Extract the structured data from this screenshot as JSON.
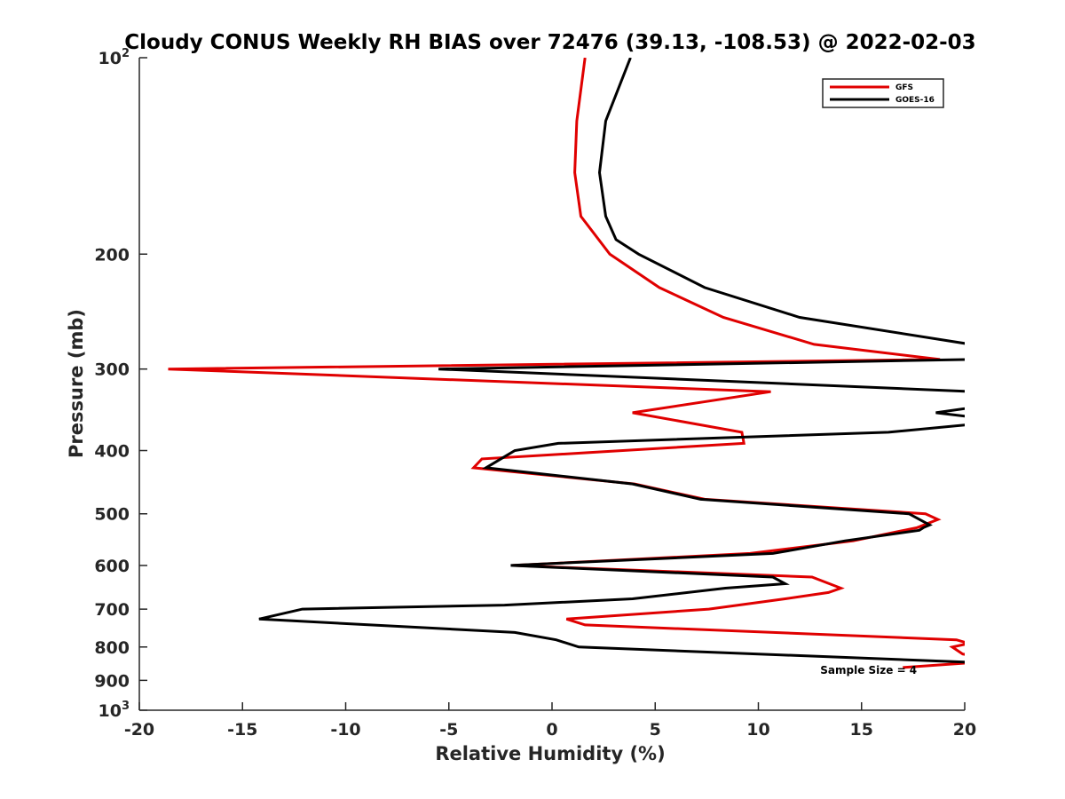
{
  "chart_data": {
    "type": "line",
    "title": "Cloudy CONUS Weekly RH BIAS over 72476 (39.13, -108.53) @ 2022-02-03",
    "xlabel": "Relative Humidity (%)",
    "ylabel": "Pressure (mb)",
    "xlim": [
      -20,
      20
    ],
    "ylim": [
      100,
      1000
    ],
    "y_scale": "log",
    "y_reversed": true,
    "grid": false,
    "legend_position": "top-right",
    "x_ticks": [
      -20,
      -15,
      -10,
      -5,
      0,
      5,
      10,
      15,
      20
    ],
    "y_ticks": [
      {
        "value": 100,
        "base": "10",
        "exp": "2",
        "label": ""
      },
      {
        "value": 200,
        "label": "200"
      },
      {
        "value": 300,
        "label": "300"
      },
      {
        "value": 400,
        "label": "400"
      },
      {
        "value": 500,
        "label": "500"
      },
      {
        "value": 600,
        "label": "600"
      },
      {
        "value": 700,
        "label": "700"
      },
      {
        "value": 800,
        "label": "800"
      },
      {
        "value": 900,
        "label": "900"
      },
      {
        "value": 1000,
        "base": "10",
        "exp": "3",
        "label": ""
      }
    ],
    "series": [
      {
        "name": "GFS",
        "color": "#e00000",
        "points": [
          [
            1.6,
            100
          ],
          [
            1.2,
            125
          ],
          [
            1.1,
            150
          ],
          [
            1.4,
            175
          ],
          [
            2.8,
            200
          ],
          [
            5.2,
            225
          ],
          [
            8.3,
            250
          ],
          [
            12.7,
            275
          ],
          [
            18.8,
            290
          ],
          [
            -18.6,
            300
          ],
          [
            10.6,
            325
          ],
          [
            3.9,
            350
          ],
          [
            9.2,
            375
          ],
          [
            9.3,
            390
          ],
          [
            -3.4,
            412
          ],
          [
            -3.8,
            425
          ],
          [
            4.0,
            450
          ],
          [
            7.4,
            475
          ],
          [
            18.1,
            500
          ],
          [
            18.7,
            510
          ],
          [
            17.7,
            525
          ],
          [
            14.6,
            550
          ],
          [
            9.6,
            575
          ],
          [
            -1.9,
            600
          ],
          [
            12.6,
            625
          ],
          [
            14.0,
            650
          ],
          [
            13.4,
            660
          ],
          [
            11.3,
            675
          ],
          [
            7.6,
            700
          ],
          [
            0.7,
            725
          ],
          [
            1.6,
            740
          ],
          [
            19.6,
            780
          ],
          [
            20.2,
            790
          ],
          [
            19.4,
            800
          ],
          [
            19.9,
            820
          ],
          [
            20.4,
            825
          ],
          [
            20.5,
            845
          ],
          [
            17.0,
            860
          ]
        ]
      },
      {
        "name": "GOES-16",
        "color": "#000000",
        "points": [
          [
            3.8,
            100
          ],
          [
            2.6,
            125
          ],
          [
            2.3,
            150
          ],
          [
            2.6,
            175
          ],
          [
            3.1,
            190
          ],
          [
            4.2,
            200
          ],
          [
            7.4,
            225
          ],
          [
            12.0,
            250
          ],
          [
            20.3,
            275
          ],
          [
            20.2,
            290
          ],
          [
            -5.5,
            300
          ],
          [
            20.5,
            325
          ],
          [
            21.4,
            340
          ],
          [
            18.6,
            350
          ],
          [
            21.2,
            358
          ],
          [
            20.2,
            365
          ],
          [
            16.3,
            375
          ],
          [
            0.3,
            390
          ],
          [
            -1.8,
            400
          ],
          [
            -3.2,
            425
          ],
          [
            3.9,
            450
          ],
          [
            7.2,
            475
          ],
          [
            17.3,
            500
          ],
          [
            18.3,
            520
          ],
          [
            18.0,
            525
          ],
          [
            17.8,
            530
          ],
          [
            14.2,
            550
          ],
          [
            10.7,
            575
          ],
          [
            -2.0,
            600
          ],
          [
            10.7,
            625
          ],
          [
            11.3,
            640
          ],
          [
            8.4,
            650
          ],
          [
            3.9,
            675
          ],
          [
            -2.3,
            690
          ],
          [
            -12.1,
            700
          ],
          [
            -14.2,
            725
          ],
          [
            -1.8,
            760
          ],
          [
            0.2,
            780
          ],
          [
            1.3,
            800
          ],
          [
            20.5,
            845
          ]
        ]
      }
    ],
    "annotations": [
      {
        "text": "Sample Size = 4",
        "x": 13.0,
        "y": 880
      }
    ]
  }
}
